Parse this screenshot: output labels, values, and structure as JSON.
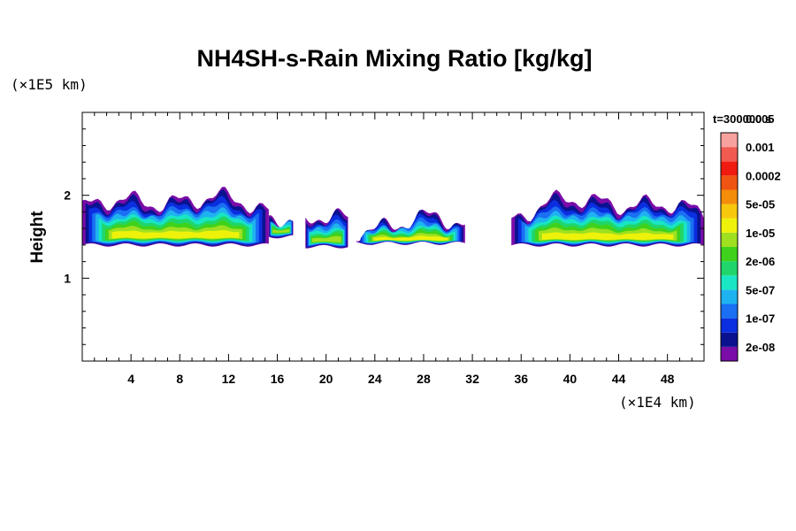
{
  "chart_data": {
    "type": "heatmap",
    "title": "NH4SH-s-Rain Mixing Ratio [kg/kg]",
    "ylabel": "Height",
    "y_unit": "(×1E5 km)",
    "x_unit": "(×1E4 km)",
    "xlim": [
      0,
      51
    ],
    "ylim": [
      0,
      3
    ],
    "x_ticks": [
      "4",
      "8",
      "12",
      "16",
      "20",
      "24",
      "28",
      "32",
      "36",
      "40",
      "44",
      "48"
    ],
    "y_ticks": [
      "1",
      "2"
    ],
    "time_label": "t=300000 s",
    "colorbar": {
      "labels": [
        "2e-08",
        "1e-07",
        "5e-07",
        "2e-06",
        "1e-05",
        "5e-05",
        "0.0002",
        "0.001",
        "0.005"
      ],
      "colors": [
        "#7a0ca8",
        "#0a1290",
        "#0a2ee0",
        "#1a6ff2",
        "#1fb2f0",
        "#18e6c4",
        "#20d66a",
        "#3fd21c",
        "#9fe020",
        "#eef20a",
        "#f7c80c",
        "#f48d0a",
        "#f05412",
        "#f01a10",
        "#f05a50",
        "#f8a2a0"
      ]
    },
    "regions": [
      {
        "name": "cloud-west",
        "x": [
          0,
          15.3
        ],
        "y_base": 1.4,
        "y_top": [
          1.8,
          1.97
        ],
        "peak_level": 9
      },
      {
        "name": "cloud-patch-16",
        "x": [
          15.3,
          17.3
        ],
        "y_base": 1.5,
        "y_top": [
          1.75,
          1.8
        ],
        "peak_level": 8
      },
      {
        "name": "cloud-patch-20",
        "x": [
          18.3,
          21.8
        ],
        "y_base": 1.38,
        "y_top": [
          1.65,
          1.7
        ],
        "peak_level": 8
      },
      {
        "name": "cloud-center",
        "x": [
          22.5,
          31.4
        ],
        "y_base": 1.42,
        "y_top": [
          1.6,
          1.7
        ],
        "peak_level": 9
      },
      {
        "name": "cloud-east",
        "x": [
          35.2,
          51
        ],
        "y_base": 1.4,
        "y_top": [
          1.72,
          1.95
        ],
        "peak_level": 9
      }
    ]
  }
}
